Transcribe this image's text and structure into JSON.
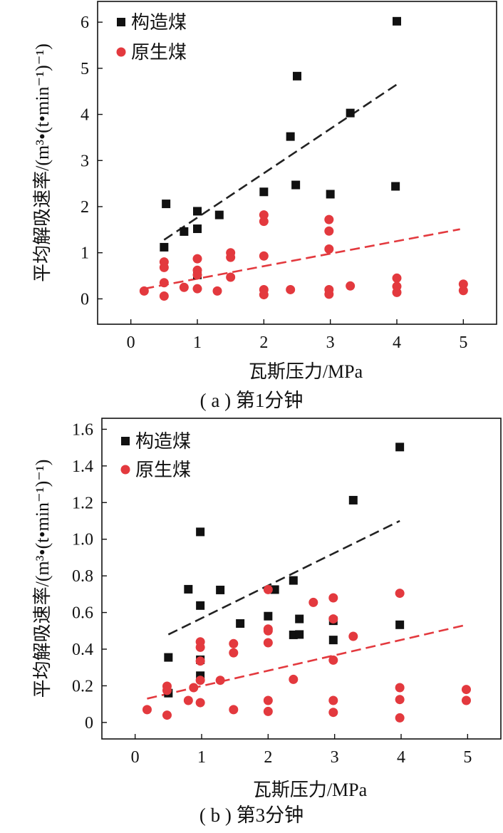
{
  "chart_data": [
    {
      "type": "scatter",
      "caption": "( a ) 第1分钟",
      "xlabel": "瓦斯压力/MPa",
      "ylabel": "平均解吸速率/(m³•(t•min⁻¹)⁻¹)",
      "xlim": [
        -0.5,
        5.5
      ],
      "ylim": [
        -0.55,
        6.45
      ],
      "xticks": [
        0,
        1,
        2,
        3,
        4,
        5
      ],
      "yticks": [
        0,
        1,
        2,
        3,
        4,
        5,
        6
      ],
      "legend_position": "top-left",
      "series": [
        {
          "name": "构造煤",
          "marker": "square",
          "color": "#111111",
          "points": [
            [
              0.5,
              1.12
            ],
            [
              0.53,
              2.06
            ],
            [
              0.8,
              1.46
            ],
            [
              1.0,
              1.9
            ],
            [
              1.0,
              1.52
            ],
            [
              1.0,
              0.52
            ],
            [
              1.33,
              1.82
            ],
            [
              2.0,
              2.32
            ],
            [
              2.4,
              3.52
            ],
            [
              2.48,
              2.47
            ],
            [
              2.5,
              4.83
            ],
            [
              3.0,
              2.27
            ],
            [
              3.3,
              4.03
            ],
            [
              3.98,
              2.44
            ],
            [
              4.0,
              6.02
            ]
          ],
          "trendline": {
            "x": [
              0.5,
              4.0
            ],
            "y": [
              1.28,
              4.65
            ],
            "color": "#222222"
          }
        },
        {
          "name": "原生煤",
          "marker": "circle",
          "color": "#e3393e",
          "points": [
            [
              0.2,
              0.17
            ],
            [
              0.5,
              0.8
            ],
            [
              0.5,
              0.68
            ],
            [
              0.5,
              0.35
            ],
            [
              0.5,
              0.06
            ],
            [
              0.8,
              0.25
            ],
            [
              1.0,
              0.87
            ],
            [
              1.0,
              0.62
            ],
            [
              1.0,
              0.52
            ],
            [
              1.0,
              0.22
            ],
            [
              1.3,
              0.17
            ],
            [
              1.5,
              1.0
            ],
            [
              1.5,
              0.9
            ],
            [
              1.5,
              0.47
            ],
            [
              2.0,
              1.82
            ],
            [
              2.0,
              1.68
            ],
            [
              2.0,
              0.93
            ],
            [
              2.0,
              0.2
            ],
            [
              2.0,
              0.09
            ],
            [
              2.4,
              0.2
            ],
            [
              2.98,
              1.72
            ],
            [
              2.98,
              1.47
            ],
            [
              2.98,
              1.08
            ],
            [
              2.98,
              0.2
            ],
            [
              2.98,
              0.1
            ],
            [
              3.3,
              0.28
            ],
            [
              4.0,
              0.45
            ],
            [
              4.0,
              0.27
            ],
            [
              4.0,
              0.14
            ],
            [
              5.0,
              0.32
            ],
            [
              5.0,
              0.18
            ]
          ],
          "trendline": {
            "x": [
              0.2,
              4.95
            ],
            "y": [
              0.22,
              1.51
            ],
            "color": "#e3393e"
          }
        }
      ]
    },
    {
      "type": "scatter",
      "caption": "( b ) 第3分钟",
      "xlabel": "瓦斯压力/MPa",
      "ylabel": "平均解吸速率/(m³•(t•min⁻¹)⁻¹)",
      "xlim": [
        -0.5,
        5.5
      ],
      "ylim": [
        -0.09,
        1.66
      ],
      "xticks": [
        0,
        1,
        2,
        3,
        4,
        5
      ],
      "yticks": [
        0,
        0.2,
        0.4,
        0.6,
        0.8,
        1.0,
        1.2,
        1.4,
        1.6
      ],
      "ytick_labels": [
        "0",
        "0.2",
        "0.4",
        "0.6",
        "0.8",
        "1.0",
        "1.2",
        "1.4",
        "1.6"
      ],
      "legend_position": "top-left",
      "series": [
        {
          "name": "构造煤",
          "marker": "square",
          "color": "#111111",
          "points": [
            [
              0.5,
              0.355
            ],
            [
              0.5,
              0.16
            ],
            [
              0.8,
              0.727
            ],
            [
              0.98,
              1.04
            ],
            [
              0.98,
              0.638
            ],
            [
              0.98,
              0.342
            ],
            [
              0.98,
              0.255
            ],
            [
              1.28,
              0.723
            ],
            [
              1.58,
              0.54
            ],
            [
              2.0,
              0.58
            ],
            [
              2.1,
              0.725
            ],
            [
              2.38,
              0.775
            ],
            [
              2.38,
              0.478
            ],
            [
              2.47,
              0.48
            ],
            [
              2.47,
              0.565
            ],
            [
              2.98,
              0.555
            ],
            [
              2.98,
              0.45
            ],
            [
              3.28,
              1.213
            ],
            [
              3.98,
              1.503
            ],
            [
              3.98,
              0.533
            ]
          ],
          "trendline": {
            "x": [
              0.5,
              3.98
            ],
            "y": [
              0.48,
              1.1
            ],
            "color": "#222222"
          }
        },
        {
          "name": "原生煤",
          "marker": "circle",
          "color": "#e3393e",
          "points": [
            [
              0.18,
              0.07
            ],
            [
              0.48,
              0.198
            ],
            [
              0.48,
              0.175
            ],
            [
              0.48,
              0.04
            ],
            [
              0.8,
              0.12
            ],
            [
              0.88,
              0.19
            ],
            [
              0.98,
              0.44
            ],
            [
              0.98,
              0.41
            ],
            [
              0.98,
              0.335
            ],
            [
              0.98,
              0.23
            ],
            [
              0.98,
              0.108
            ],
            [
              1.28,
              0.23
            ],
            [
              1.48,
              0.43
            ],
            [
              1.48,
              0.38
            ],
            [
              1.48,
              0.07
            ],
            [
              2.0,
              0.725
            ],
            [
              2.0,
              0.51
            ],
            [
              2.0,
              0.5
            ],
            [
              2.0,
              0.435
            ],
            [
              2.0,
              0.12
            ],
            [
              2.0,
              0.06
            ],
            [
              2.38,
              0.235
            ],
            [
              2.68,
              0.655
            ],
            [
              2.98,
              0.68
            ],
            [
              2.98,
              0.565
            ],
            [
              2.98,
              0.34
            ],
            [
              2.98,
              0.12
            ],
            [
              2.98,
              0.055
            ],
            [
              3.28,
              0.47
            ],
            [
              3.98,
              0.705
            ],
            [
              3.98,
              0.19
            ],
            [
              3.98,
              0.125
            ],
            [
              3.98,
              0.025
            ],
            [
              4.98,
              0.18
            ],
            [
              4.98,
              0.12
            ]
          ],
          "trendline": {
            "x": [
              0.18,
              4.95
            ],
            "y": [
              0.13,
              0.53
            ],
            "color": "#e3393e"
          }
        }
      ]
    }
  ]
}
